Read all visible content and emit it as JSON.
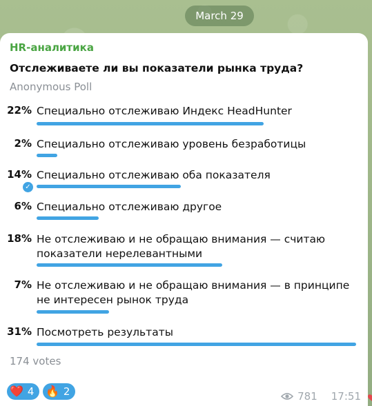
{
  "date": "March 29",
  "channel": "HR-аналитика",
  "question": "Отслеживаете ли вы показатели рынка труда?",
  "poll_type": "Anonymous Poll",
  "options": [
    {
      "percent": "22%",
      "text": "Специально отслеживаю Индекс HeadHunter",
      "value": 22,
      "selected": false
    },
    {
      "percent": "2%",
      "text": "Специально отслеживаю уровень безработицы",
      "value": 2,
      "selected": false
    },
    {
      "percent": "14%",
      "text": "Специально отслеживаю оба показателя",
      "value": 14,
      "selected": true
    },
    {
      "percent": "6%",
      "text": "Специально отслеживаю другое",
      "value": 6,
      "selected": false
    },
    {
      "percent": "18%",
      "text": "Не отслеживаю и не обращаю внимания — считаю показатели нерелевантными",
      "value": 18,
      "selected": false
    },
    {
      "percent": "7%",
      "text": "Не отслеживаю и не обращаю внимания — в принципе не интересен рынок труда",
      "value": 7,
      "selected": false
    },
    {
      "percent": "31%",
      "text": "Посмотреть результаты",
      "value": 31,
      "selected": false
    }
  ],
  "votes": "174 votes",
  "reactions": [
    {
      "emoji": "❤️",
      "icon": "heart-icon",
      "count": "4"
    },
    {
      "emoji": "🔥",
      "icon": "fire-icon",
      "count": "2"
    }
  ],
  "views": "781",
  "time": "17:51",
  "accent_color": "#41a4e3",
  "channel_color": "#4aa543"
}
